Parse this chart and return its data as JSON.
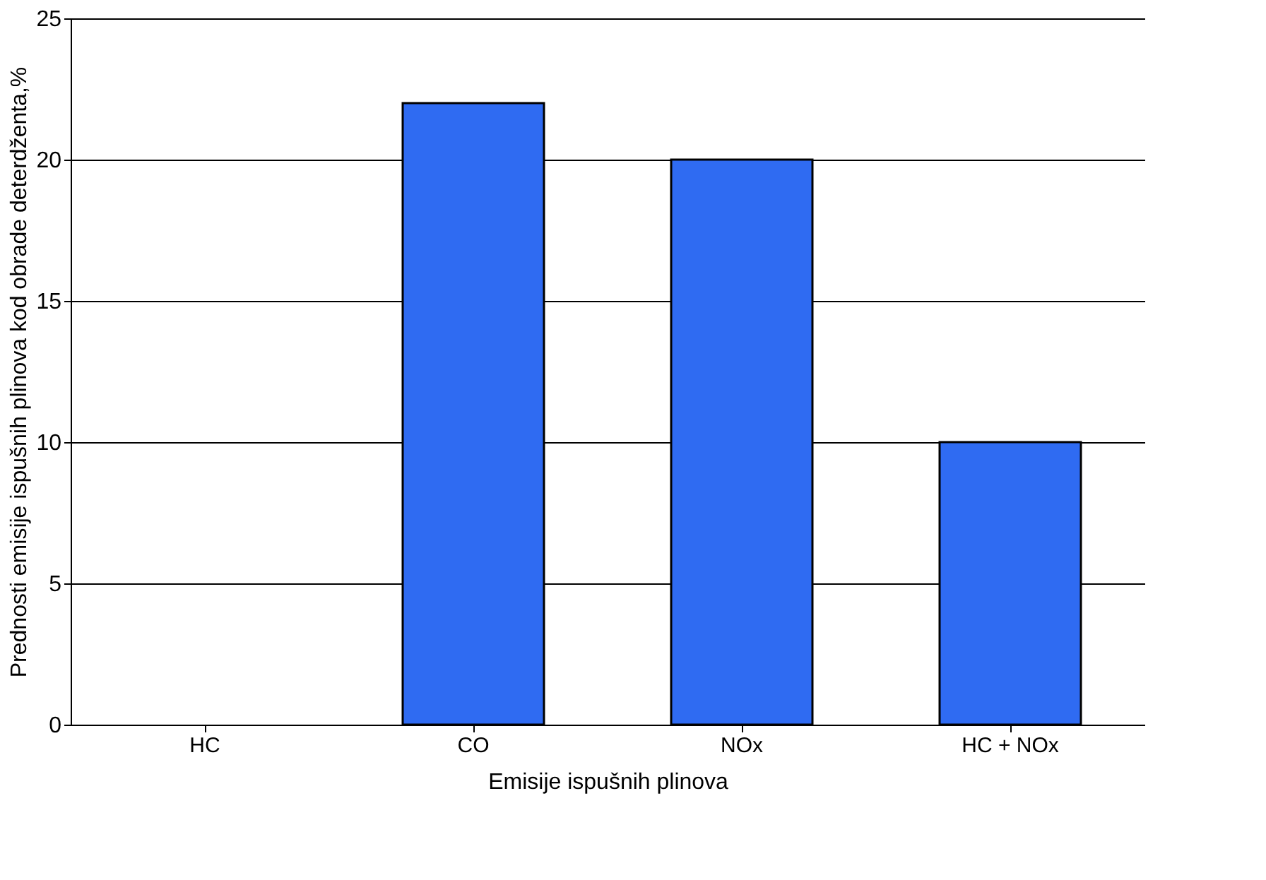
{
  "chart_data": {
    "type": "bar",
    "xlabel": "Emisije ispušnih plinova",
    "ylabel": "Prednosti emisije ispušnih plinova kod obrade deterdženta,%",
    "categories": [
      "HC",
      "CO",
      "NOx",
      "HC + NOx"
    ],
    "values": [
      0,
      22,
      20,
      10
    ],
    "color": "#2f6bf2",
    "ylim": [
      0,
      25
    ],
    "yticks": [
      0,
      5,
      10,
      15,
      20,
      25
    ],
    "grid": "y"
  }
}
